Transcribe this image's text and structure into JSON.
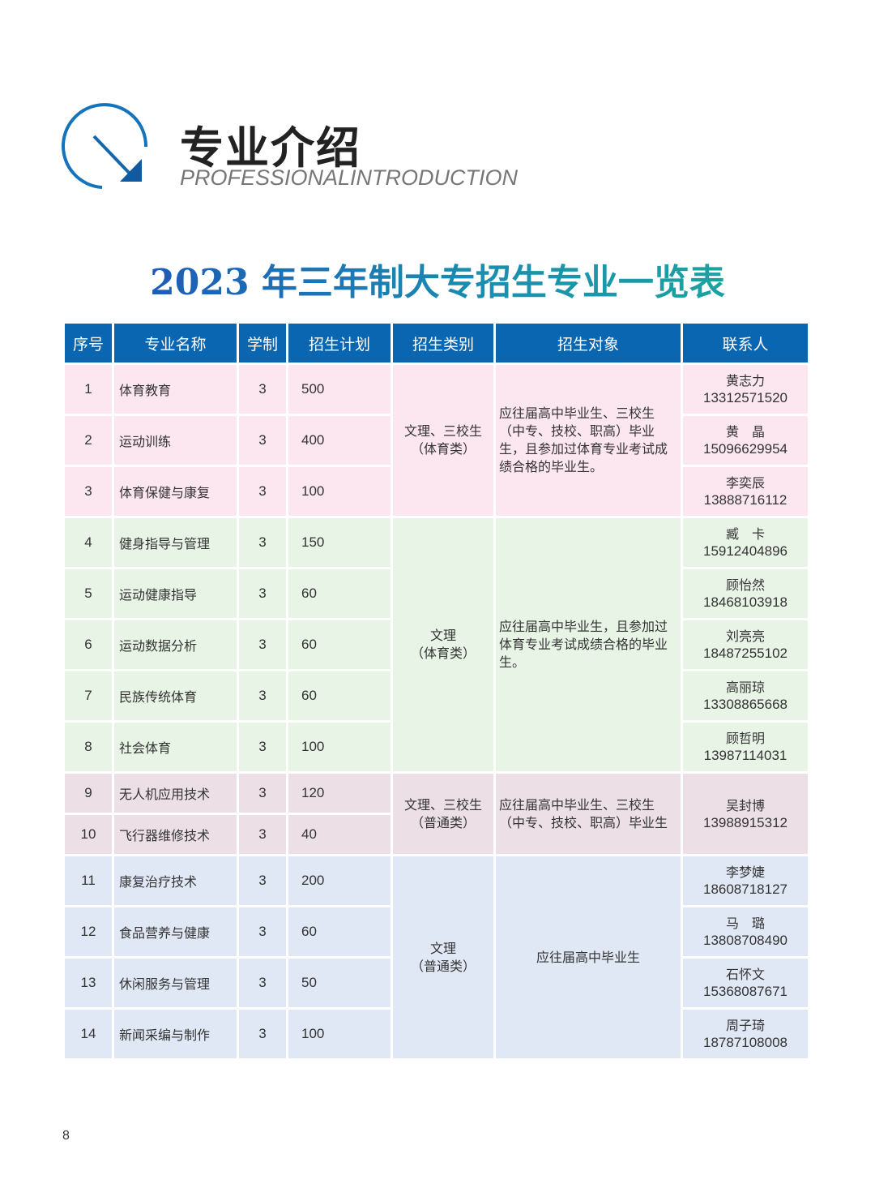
{
  "section": {
    "title": "专业介绍",
    "subtitle": "PROFESSIONALINTRODUCTION",
    "icon": "arrow-circle-icon"
  },
  "table_title": "2023 年三年制大专招生专业一览表",
  "colors": {
    "header": "#0b66b2",
    "group_bg": [
      "#fce6ef",
      "#e8f4e6",
      "#ece0e6",
      "#e0e8f5"
    ]
  },
  "headers": [
    "序号",
    "专业名称",
    "学制",
    "招生计划",
    "招生类别",
    "招生对象",
    "联系人"
  ],
  "groups": [
    {
      "category": [
        "文理、三校生",
        "（体育类）"
      ],
      "target": "应往届高中毕业生、三校生（中专、技校、职高）毕业生，且参加过体育专业考试成绩合格的毕业生。",
      "rows": [
        {
          "no": "1",
          "name": "体育教育",
          "years": "3",
          "plan": "500",
          "contact": {
            "name": "黄志力",
            "phone": "13312571520"
          }
        },
        {
          "no": "2",
          "name": "运动训练",
          "years": "3",
          "plan": "400",
          "contact": {
            "name": "黄　晶",
            "phone": "15096629954"
          }
        },
        {
          "no": "3",
          "name": "体育保健与康复",
          "years": "3",
          "plan": "100",
          "contact": {
            "name": "李奕辰",
            "phone": "13888716112"
          }
        }
      ]
    },
    {
      "category": [
        "文理",
        "（体育类）"
      ],
      "target": "应往届高中毕业生，且参加过体育专业考试成绩合格的毕业生。",
      "rows": [
        {
          "no": "4",
          "name": "健身指导与管理",
          "years": "3",
          "plan": "150",
          "contact": {
            "name": "臧　卡",
            "phone": "15912404896"
          }
        },
        {
          "no": "5",
          "name": "运动健康指导",
          "years": "3",
          "plan": "60",
          "contact": {
            "name": "顾怡然",
            "phone": "18468103918"
          }
        },
        {
          "no": "6",
          "name": "运动数据分析",
          "years": "3",
          "plan": "60",
          "contact": {
            "name": "刘亮亮",
            "phone": "18487255102"
          }
        },
        {
          "no": "7",
          "name": "民族传统体育",
          "years": "3",
          "plan": "60",
          "contact": {
            "name": "高丽琼",
            "phone": "13308865668"
          }
        },
        {
          "no": "8",
          "name": "社会体育",
          "years": "3",
          "plan": "100",
          "contact": {
            "name": "顾哲明",
            "phone": "13987114031"
          }
        }
      ]
    },
    {
      "category": [
        "文理、三校生",
        "（普通类）"
      ],
      "target": "应往届高中毕业生、三校生（中专、技校、职高）毕业生",
      "shared_contact": {
        "name": "吴封博",
        "phone": "13988915312"
      },
      "rows": [
        {
          "no": "9",
          "name": "无人机应用技术",
          "years": "3",
          "plan": "120"
        },
        {
          "no": "10",
          "name": "飞行器维修技术",
          "years": "3",
          "plan": "40"
        }
      ]
    },
    {
      "category": [
        "文理",
        "（普通类）"
      ],
      "target": "应往届高中毕业生",
      "target_centered": true,
      "rows": [
        {
          "no": "11",
          "name": "康复治疗技术",
          "years": "3",
          "plan": "200",
          "contact": {
            "name": "李梦婕",
            "phone": "18608718127"
          }
        },
        {
          "no": "12",
          "name": "食品营养与健康",
          "years": "3",
          "plan": "60",
          "contact": {
            "name": "马　璐",
            "phone": "13808708490"
          }
        },
        {
          "no": "13",
          "name": "休闲服务与管理",
          "years": "3",
          "plan": "50",
          "contact": {
            "name": "石怀文",
            "phone": "15368087671"
          }
        },
        {
          "no": "14",
          "name": "新闻采编与制作",
          "years": "3",
          "plan": "100",
          "contact": {
            "name": "周子琦",
            "phone": "18787108008"
          }
        }
      ]
    }
  ],
  "page_number": "8"
}
